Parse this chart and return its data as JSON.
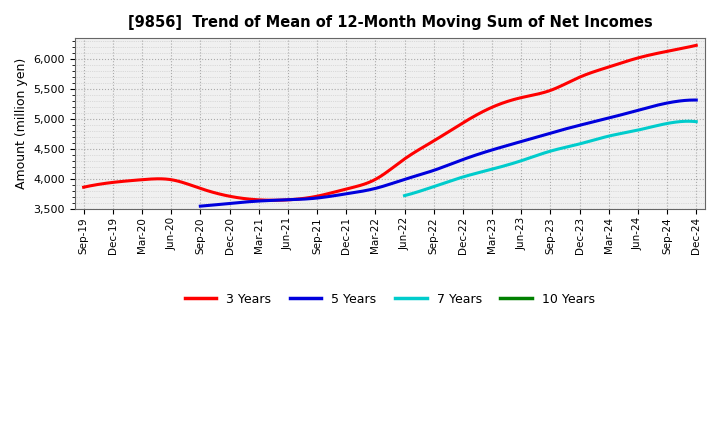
{
  "title": "[9856]  Trend of Mean of 12-Month Moving Sum of Net Incomes",
  "ylabel": "Amount (million yen)",
  "ylim": [
    3500,
    6350
  ],
  "yticks": [
    3500,
    4000,
    4500,
    5000,
    5500,
    6000
  ],
  "background_color": "#ffffff",
  "plot_bg_color": "#f0f0f0",
  "grid_color": "#999999",
  "x_labels": [
    "Sep-19",
    "Dec-19",
    "Mar-20",
    "Jun-20",
    "Sep-20",
    "Dec-20",
    "Mar-21",
    "Jun-21",
    "Sep-21",
    "Dec-21",
    "Mar-22",
    "Jun-22",
    "Sep-22",
    "Dec-22",
    "Mar-23",
    "Jun-23",
    "Sep-23",
    "Dec-23",
    "Mar-24",
    "Jun-24",
    "Sep-24",
    "Dec-24"
  ],
  "series": {
    "3 Years": {
      "color": "#ff0000",
      "data": [
        3870,
        3950,
        3995,
        3995,
        3850,
        3720,
        3660,
        3660,
        3720,
        3840,
        4000,
        4340,
        4640,
        4940,
        5200,
        5360,
        5480,
        5700,
        5870,
        6020,
        6130,
        6230
      ]
    },
    "5 Years": {
      "color": "#0000dd",
      "data": [
        null,
        null,
        null,
        null,
        3555,
        3600,
        3640,
        3660,
        3690,
        3760,
        3850,
        4000,
        4150,
        4330,
        4490,
        4630,
        4770,
        4900,
        5020,
        5150,
        5270,
        5320
      ]
    },
    "7 Years": {
      "color": "#00cccc",
      "data": [
        null,
        null,
        null,
        null,
        null,
        null,
        null,
        null,
        null,
        null,
        null,
        3730,
        3880,
        4040,
        4170,
        4310,
        4470,
        4590,
        4720,
        4820,
        4930,
        4960
      ]
    },
    "10 Years": {
      "color": "#008000",
      "data": [
        null,
        null,
        null,
        null,
        null,
        null,
        null,
        null,
        null,
        null,
        null,
        null,
        null,
        null,
        null,
        null,
        null,
        null,
        null,
        null,
        null,
        null
      ]
    }
  },
  "legend_order": [
    "3 Years",
    "5 Years",
    "7 Years",
    "10 Years"
  ]
}
